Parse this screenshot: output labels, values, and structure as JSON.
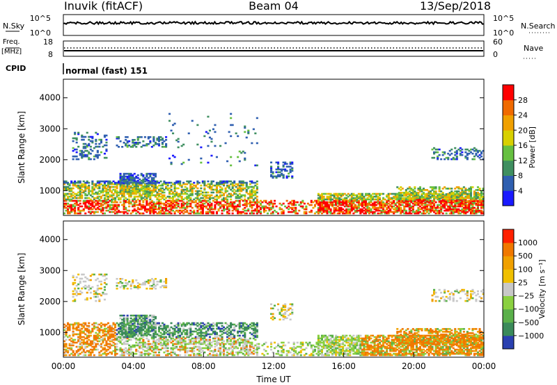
{
  "header": {
    "station": "Inuvik (fitACF)",
    "beam": "Beam 04",
    "date": "13/Sep/2018"
  },
  "panels": {
    "nsky": {
      "left_label": "N.Sky",
      "left_ticks": [
        "10^5",
        "10^0"
      ],
      "right_ticks": [
        "10^5",
        "10^0"
      ],
      "right_label": "N.Search"
    },
    "freq": {
      "left_label_1": "Freq.",
      "left_label_2": "[MHz]",
      "left_ticks": [
        "18",
        "8"
      ],
      "right_ticks": [
        "60",
        "0"
      ],
      "right_label": "Nave"
    },
    "cpid": {
      "label": "CPID",
      "mode": "normal (fast) 151"
    }
  },
  "chart_data": [
    {
      "type": "heatmap",
      "name": "power",
      "ylabel": "Slant Range [km]",
      "yticks": [
        "1000",
        "2000",
        "3000",
        "4000"
      ],
      "ylim": [
        200,
        4600
      ],
      "colorbar_label": "Power [dB]",
      "colorbar_ticks": [
        "4",
        "8",
        "12",
        "16",
        "20",
        "24",
        "28"
      ],
      "colorbar_range": [
        0,
        32
      ],
      "colors": [
        "#1a1aff",
        "#2f5fb0",
        "#3f8f60",
        "#66c040",
        "#d8d000",
        "#f0a000",
        "#f06a00",
        "#ff0000"
      ]
    },
    {
      "type": "heatmap",
      "name": "velocity",
      "ylabel": "Slant Range [km]",
      "yticks": [
        "1000",
        "2000",
        "3000",
        "4000"
      ],
      "ylim": [
        200,
        4600
      ],
      "colorbar_label": "Velocity [m s⁻¹]",
      "colorbar_ticks": [
        "1000",
        "500",
        "100",
        "25",
        "−25",
        "−100",
        "−500",
        "−1000"
      ],
      "colors": [
        "#2a40b0",
        "#3a8a5a",
        "#5ab04a",
        "#8ad040",
        "#c8c8c8",
        "#f0c000",
        "#f0a000",
        "#f07800",
        "#ff2000"
      ]
    }
  ],
  "xaxis": {
    "ticks": [
      "00:00",
      "04:00",
      "08:00",
      "12:00",
      "16:00",
      "20:00",
      "00:00"
    ],
    "label": "Time UT"
  }
}
